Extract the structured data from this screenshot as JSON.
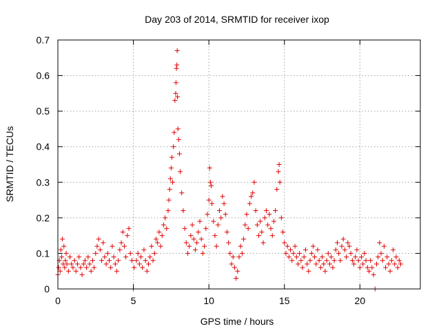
{
  "chart_data": {
    "type": "scatter",
    "title": "Day 203 of 2014, SRMTID for receiver ixop",
    "xlabel": "GPS time / hours",
    "ylabel": "SRMTID / TECUs",
    "xlim": [
      0,
      24
    ],
    "ylim": [
      0,
      0.7
    ],
    "xticks": [
      0,
      5,
      10,
      15,
      20
    ],
    "yticks": [
      0,
      0.1,
      0.2,
      0.3,
      0.4,
      0.5,
      0.6,
      0.7
    ],
    "xtick_labels": [
      "0",
      "5",
      "10",
      "15",
      "20"
    ],
    "ytick_labels": [
      "0",
      "0.1",
      "0.2",
      "0.3",
      "0.4",
      "0.5",
      "0.6",
      "0.7"
    ],
    "grid": true,
    "marker": "+",
    "color": "#e00000",
    "series": [
      {
        "name": "SRMTID",
        "points": [
          [
            0.0,
            0.04
          ],
          [
            0.05,
            0.06
          ],
          [
            0.1,
            0.08
          ],
          [
            0.15,
            0.05
          ],
          [
            0.2,
            0.11
          ],
          [
            0.25,
            0.09
          ],
          [
            0.3,
            0.14
          ],
          [
            0.35,
            0.07
          ],
          [
            0.4,
            0.12
          ],
          [
            0.45,
            0.06
          ],
          [
            0.5,
            0.08
          ],
          [
            0.55,
            0.1
          ],
          [
            0.6,
            0.07
          ],
          [
            0.7,
            0.05
          ],
          [
            0.8,
            0.09
          ],
          [
            0.9,
            0.07
          ],
          [
            1.0,
            0.06
          ],
          [
            1.1,
            0.08
          ],
          [
            1.2,
            0.05
          ],
          [
            1.3,
            0.07
          ],
          [
            1.4,
            0.09
          ],
          [
            1.5,
            0.06
          ],
          [
            1.6,
            0.04
          ],
          [
            1.7,
            0.07
          ],
          [
            1.8,
            0.08
          ],
          [
            1.9,
            0.06
          ],
          [
            2.0,
            0.09
          ],
          [
            2.1,
            0.07
          ],
          [
            2.2,
            0.05
          ],
          [
            2.3,
            0.08
          ],
          [
            2.4,
            0.06
          ],
          [
            2.5,
            0.1
          ],
          [
            2.6,
            0.12
          ],
          [
            2.7,
            0.14
          ],
          [
            2.8,
            0.11
          ],
          [
            2.9,
            0.08
          ],
          [
            3.0,
            0.13
          ],
          [
            3.1,
            0.09
          ],
          [
            3.2,
            0.07
          ],
          [
            3.3,
            0.1
          ],
          [
            3.4,
            0.08
          ],
          [
            3.5,
            0.06
          ],
          [
            3.6,
            0.12
          ],
          [
            3.7,
            0.09
          ],
          [
            3.8,
            0.07
          ],
          [
            3.9,
            0.05
          ],
          [
            4.0,
            0.08
          ],
          [
            4.1,
            0.11
          ],
          [
            4.2,
            0.13
          ],
          [
            4.3,
            0.16
          ],
          [
            4.4,
            0.12
          ],
          [
            4.5,
            0.09
          ],
          [
            4.6,
            0.15
          ],
          [
            4.7,
            0.17
          ],
          [
            4.8,
            0.1
          ],
          [
            4.9,
            0.08
          ],
          [
            5.0,
            0.0
          ],
          [
            5.05,
            0.06
          ],
          [
            5.2,
            0.08
          ],
          [
            5.3,
            0.1
          ],
          [
            5.4,
            0.07
          ],
          [
            5.5,
            0.09
          ],
          [
            5.6,
            0.06
          ],
          [
            5.7,
            0.11
          ],
          [
            5.8,
            0.08
          ],
          [
            5.9,
            0.05
          ],
          [
            6.0,
            0.07
          ],
          [
            6.1,
            0.09
          ],
          [
            6.2,
            0.12
          ],
          [
            6.3,
            0.08
          ],
          [
            6.4,
            0.1
          ],
          [
            6.5,
            0.14
          ],
          [
            6.6,
            0.13
          ],
          [
            6.7,
            0.16
          ],
          [
            6.8,
            0.12
          ],
          [
            6.9,
            0.15
          ],
          [
            7.0,
            0.18
          ],
          [
            7.1,
            0.2
          ],
          [
            7.2,
            0.17
          ],
          [
            7.3,
            0.22
          ],
          [
            7.35,
            0.25
          ],
          [
            7.4,
            0.28
          ],
          [
            7.45,
            0.31
          ],
          [
            7.5,
            0.34
          ],
          [
            7.55,
            0.37
          ],
          [
            7.6,
            0.3
          ],
          [
            7.65,
            0.4
          ],
          [
            7.7,
            0.44
          ],
          [
            7.75,
            0.53
          ],
          [
            7.8,
            0.55
          ],
          [
            7.82,
            0.58
          ],
          [
            7.85,
            0.62
          ],
          [
            7.88,
            0.63
          ],
          [
            7.9,
            0.67
          ],
          [
            7.92,
            0.54
          ],
          [
            7.95,
            0.45
          ],
          [
            8.0,
            0.42
          ],
          [
            8.05,
            0.38
          ],
          [
            8.1,
            0.33
          ],
          [
            8.2,
            0.27
          ],
          [
            8.3,
            0.22
          ],
          [
            8.4,
            0.17
          ],
          [
            8.5,
            0.13
          ],
          [
            8.6,
            0.1
          ],
          [
            8.7,
            0.12
          ],
          [
            8.8,
            0.15
          ],
          [
            8.9,
            0.18
          ],
          [
            9.0,
            0.14
          ],
          [
            9.1,
            0.11
          ],
          [
            9.2,
            0.13
          ],
          [
            9.3,
            0.16
          ],
          [
            9.4,
            0.19
          ],
          [
            9.5,
            0.14
          ],
          [
            9.6,
            0.1
          ],
          [
            9.7,
            0.12
          ],
          [
            9.8,
            0.17
          ],
          [
            9.9,
            0.21
          ],
          [
            10.0,
            0.25
          ],
          [
            10.05,
            0.34
          ],
          [
            10.1,
            0.3
          ],
          [
            10.15,
            0.29
          ],
          [
            10.2,
            0.24
          ],
          [
            10.3,
            0.19
          ],
          [
            10.4,
            0.15
          ],
          [
            10.5,
            0.12
          ],
          [
            10.6,
            0.18
          ],
          [
            10.7,
            0.22
          ],
          [
            10.8,
            0.2
          ],
          [
            10.9,
            0.26
          ],
          [
            11.0,
            0.24
          ],
          [
            11.1,
            0.21
          ],
          [
            11.2,
            0.16
          ],
          [
            11.3,
            0.13
          ],
          [
            11.4,
            0.1
          ],
          [
            11.5,
            0.07
          ],
          [
            11.6,
            0.09
          ],
          [
            11.7,
            0.06
          ],
          [
            11.8,
            0.03
          ],
          [
            11.9,
            0.05
          ],
          [
            12.0,
            0.09
          ],
          [
            12.1,
            0.12
          ],
          [
            12.2,
            0.1
          ],
          [
            12.3,
            0.14
          ],
          [
            12.4,
            0.18
          ],
          [
            12.5,
            0.21
          ],
          [
            12.6,
            0.17
          ],
          [
            12.7,
            0.24
          ],
          [
            12.8,
            0.26
          ],
          [
            12.9,
            0.27
          ],
          [
            13.0,
            0.3
          ],
          [
            13.1,
            0.22
          ],
          [
            13.2,
            0.18
          ],
          [
            13.3,
            0.15
          ],
          [
            13.4,
            0.19
          ],
          [
            13.5,
            0.16
          ],
          [
            13.6,
            0.13
          ],
          [
            13.7,
            0.2
          ],
          [
            13.8,
            0.22
          ],
          [
            13.9,
            0.18
          ],
          [
            14.0,
            0.21
          ],
          [
            14.1,
            0.17
          ],
          [
            14.2,
            0.15
          ],
          [
            14.3,
            0.19
          ],
          [
            14.4,
            0.22
          ],
          [
            14.5,
            0.28
          ],
          [
            14.6,
            0.33
          ],
          [
            14.65,
            0.35
          ],
          [
            14.7,
            0.3
          ],
          [
            14.8,
            0.2
          ],
          [
            14.9,
            0.16
          ],
          [
            15.0,
            0.13
          ],
          [
            15.1,
            0.1
          ],
          [
            15.2,
            0.12
          ],
          [
            15.3,
            0.09
          ],
          [
            15.4,
            0.11
          ],
          [
            15.5,
            0.08
          ],
          [
            15.6,
            0.1
          ],
          [
            15.7,
            0.12
          ],
          [
            15.8,
            0.09
          ],
          [
            15.9,
            0.07
          ],
          [
            16.0,
            0.1
          ],
          [
            16.1,
            0.08
          ],
          [
            16.2,
            0.06
          ],
          [
            16.3,
            0.09
          ],
          [
            16.4,
            0.11
          ],
          [
            16.5,
            0.07
          ],
          [
            16.6,
            0.05
          ],
          [
            16.7,
            0.08
          ],
          [
            16.8,
            0.1
          ],
          [
            16.9,
            0.12
          ],
          [
            17.0,
            0.09
          ],
          [
            17.1,
            0.07
          ],
          [
            17.2,
            0.11
          ],
          [
            17.3,
            0.08
          ],
          [
            17.4,
            0.06
          ],
          [
            17.5,
            0.09
          ],
          [
            17.6,
            0.07
          ],
          [
            17.7,
            0.05
          ],
          [
            17.8,
            0.08
          ],
          [
            17.9,
            0.1
          ],
          [
            18.0,
            0.07
          ],
          [
            18.1,
            0.09
          ],
          [
            18.2,
            0.06
          ],
          [
            18.3,
            0.08
          ],
          [
            18.4,
            0.11
          ],
          [
            18.5,
            0.13
          ],
          [
            18.6,
            0.1
          ],
          [
            18.7,
            0.08
          ],
          [
            18.8,
            0.12
          ],
          [
            18.9,
            0.14
          ],
          [
            19.0,
            0.11
          ],
          [
            19.1,
            0.09
          ],
          [
            19.2,
            0.13
          ],
          [
            19.3,
            0.12
          ],
          [
            19.4,
            0.1
          ],
          [
            19.5,
            0.08
          ],
          [
            19.6,
            0.07
          ],
          [
            19.7,
            0.09
          ],
          [
            19.8,
            0.11
          ],
          [
            19.9,
            0.08
          ],
          [
            20.0,
            0.06
          ],
          [
            20.1,
            0.09
          ],
          [
            20.2,
            0.07
          ],
          [
            20.3,
            0.1
          ],
          [
            20.4,
            0.08
          ],
          [
            20.5,
            0.06
          ],
          [
            20.6,
            0.05
          ],
          [
            20.7,
            0.08
          ],
          [
            20.8,
            0.06
          ],
          [
            20.9,
            0.04
          ],
          [
            21.0,
            0.0
          ],
          [
            21.1,
            0.07
          ],
          [
            21.2,
            0.09
          ],
          [
            21.3,
            0.13
          ],
          [
            21.4,
            0.1
          ],
          [
            21.5,
            0.08
          ],
          [
            21.6,
            0.12
          ],
          [
            21.7,
            0.06
          ],
          [
            21.8,
            0.09
          ],
          [
            21.9,
            0.07
          ],
          [
            22.0,
            0.05
          ],
          [
            22.1,
            0.08
          ],
          [
            22.2,
            0.11
          ],
          [
            22.3,
            0.07
          ],
          [
            22.4,
            0.09
          ],
          [
            22.5,
            0.06
          ],
          [
            22.6,
            0.08
          ],
          [
            22.7,
            0.07
          ]
        ]
      }
    ]
  }
}
